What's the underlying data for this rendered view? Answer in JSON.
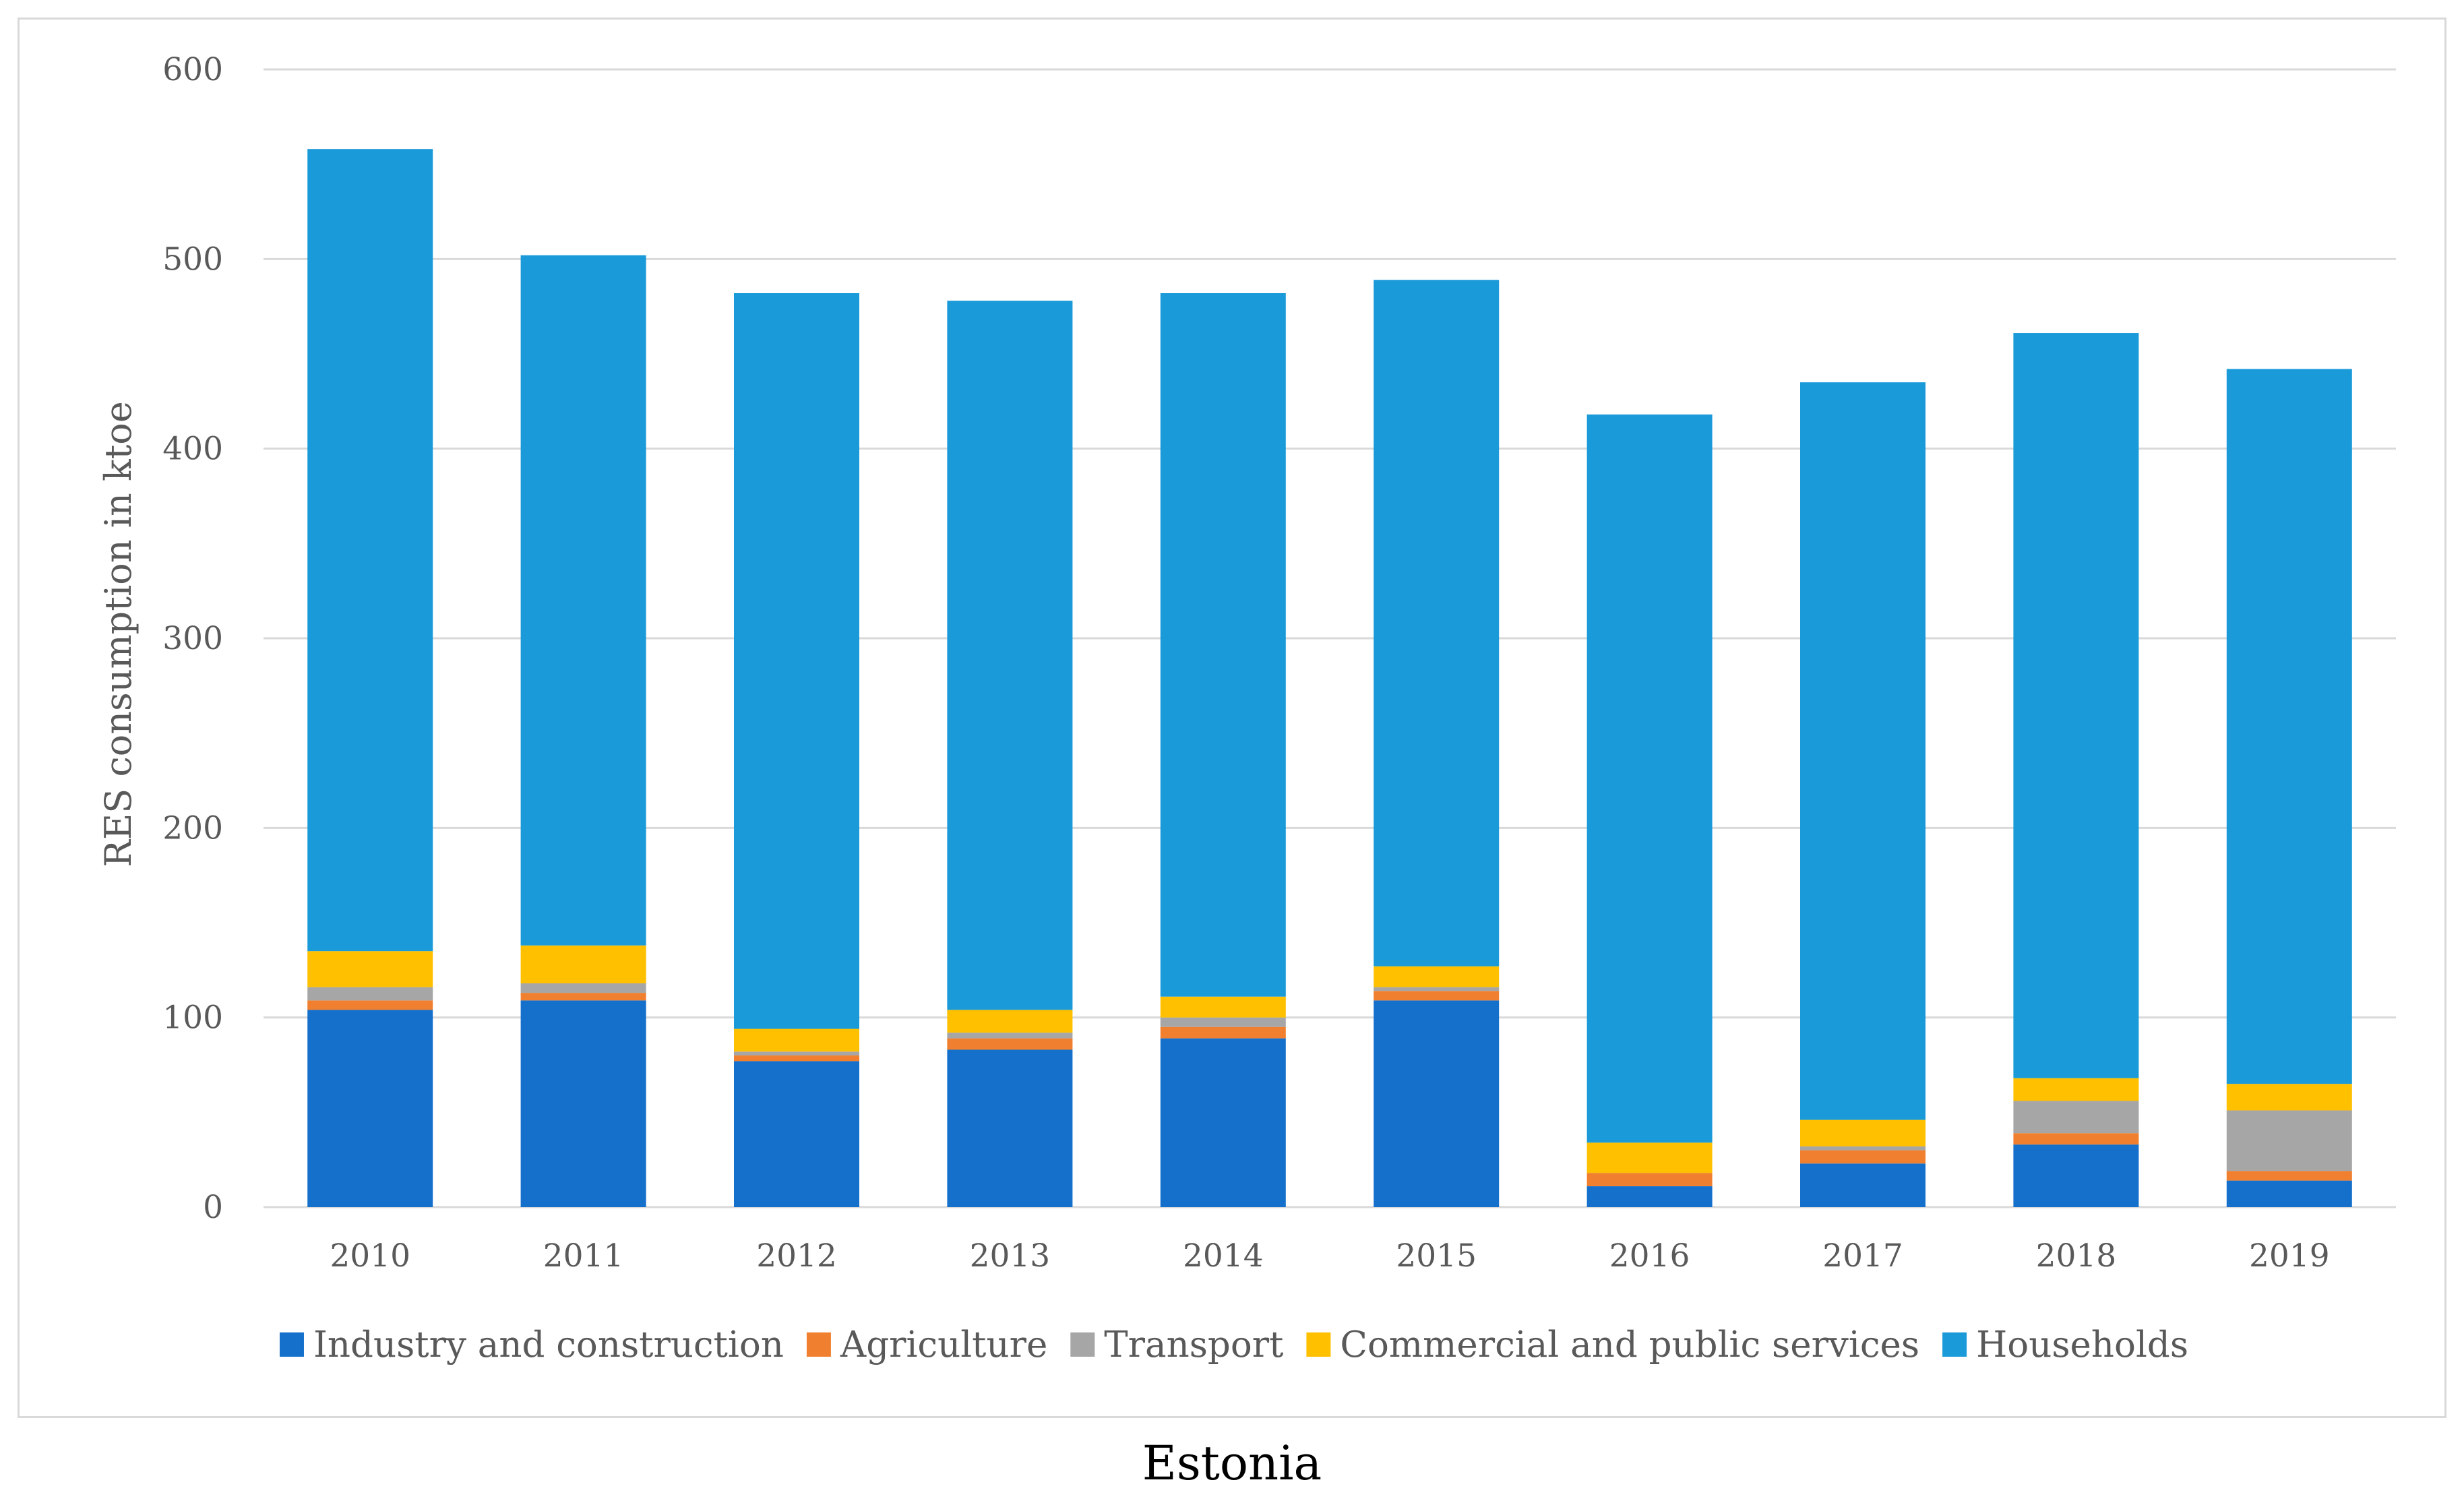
{
  "caption": "Estonia",
  "chart_data": {
    "type": "bar",
    "stacked": true,
    "title": "",
    "xlabel": "",
    "ylabel": "RES consumption in ktoe",
    "ylim": [
      0,
      600
    ],
    "yticks": [
      0,
      100,
      200,
      300,
      400,
      500,
      600
    ],
    "grid": true,
    "legend_position": "bottom",
    "categories": [
      "2010",
      "2011",
      "2012",
      "2013",
      "2014",
      "2015",
      "2016",
      "2017",
      "2018",
      "2019"
    ],
    "series": [
      {
        "name": "Industry and construction",
        "color": "#1570cc",
        "values": [
          104,
          109,
          77,
          83,
          89,
          109,
          11,
          23,
          33,
          14
        ]
      },
      {
        "name": "Agriculture",
        "color": "#f07f2f",
        "values": [
          5,
          4,
          3,
          6,
          6,
          5,
          7,
          7,
          6,
          5
        ]
      },
      {
        "name": "Transport",
        "color": "#a6a6a6",
        "values": [
          7,
          5,
          2,
          3,
          5,
          2,
          0,
          2,
          17,
          32
        ]
      },
      {
        "name": "Commercial and public services",
        "color": "#ffc000",
        "values": [
          19,
          20,
          12,
          12,
          11,
          11,
          16,
          14,
          12,
          14
        ]
      },
      {
        "name": "Households",
        "color": "#1a9ad8",
        "values": [
          423,
          364,
          388,
          374,
          371,
          362,
          384,
          389,
          393,
          377
        ]
      }
    ]
  }
}
